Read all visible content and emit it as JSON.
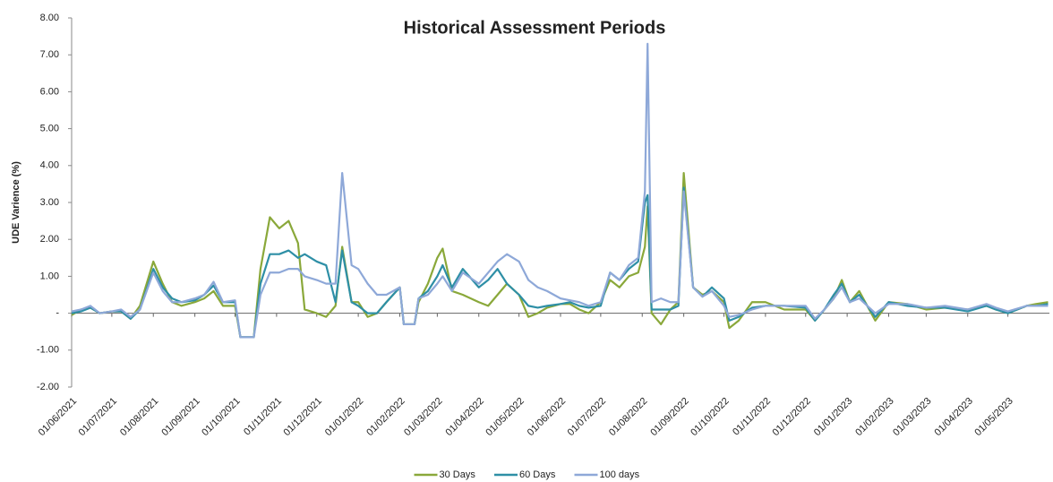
{
  "chart_data": {
    "type": "line",
    "title": "Historical Assessment Periods",
    "y_label": "UDE Varience (%)",
    "x": [
      "01/06/2021",
      "08/06/2021",
      "15/06/2021",
      "22/06/2021",
      "01/07/2021",
      "08/07/2021",
      "15/07/2021",
      "22/07/2021",
      "01/08/2021",
      "08/08/2021",
      "15/08/2021",
      "22/08/2021",
      "01/09/2021",
      "08/09/2021",
      "15/09/2021",
      "22/09/2021",
      "01/10/2021",
      "05/10/2021",
      "15/10/2021",
      "20/10/2021",
      "27/10/2021",
      "03/11/2021",
      "10/11/2021",
      "17/11/2021",
      "22/11/2021",
      "01/12/2021",
      "08/12/2021",
      "15/12/2021",
      "20/12/2021",
      "27/12/2021",
      "01/01/2022",
      "08/01/2022",
      "15/01/2022",
      "22/01/2022",
      "01/02/2022",
      "04/02/2022",
      "12/02/2022",
      "15/02/2022",
      "22/02/2022",
      "01/03/2022",
      "05/03/2022",
      "12/03/2022",
      "20/03/2022",
      "01/04/2022",
      "08/04/2022",
      "15/04/2022",
      "22/04/2022",
      "01/05/2022",
      "08/05/2022",
      "15/05/2022",
      "22/05/2022",
      "01/06/2022",
      "08/06/2022",
      "15/06/2022",
      "22/06/2022",
      "01/07/2022",
      "08/07/2022",
      "15/07/2022",
      "22/07/2022",
      "29/07/2022",
      "03/08/2022",
      "05/08/2022",
      "08/08/2022",
      "15/08/2022",
      "22/08/2022",
      "28/08/2022",
      "01/09/2022",
      "08/09/2022",
      "15/09/2022",
      "22/09/2022",
      "01/10/2022",
      "05/10/2022",
      "12/10/2022",
      "22/10/2022",
      "01/11/2022",
      "15/11/2022",
      "01/12/2022",
      "08/12/2022",
      "15/12/2022",
      "22/12/2022",
      "28/12/2022",
      "03/01/2023",
      "10/01/2023",
      "22/01/2023",
      "01/02/2023",
      "15/02/2023",
      "01/03/2023",
      "15/03/2023",
      "01/04/2023",
      "15/04/2023",
      "22/04/2023",
      "01/05/2023",
      "15/05/2023",
      "22/05/2023",
      "31/05/2023"
    ],
    "series": [
      {
        "name": "30 Days",
        "color": "#8aa83a",
        "values": [
          -0.05,
          0.1,
          0.15,
          0,
          0.05,
          0.05,
          -0.15,
          0.2,
          1.4,
          0.8,
          0.3,
          0.2,
          0.3,
          0.4,
          0.6,
          0.2,
          0.2,
          -0.65,
          -0.65,
          1.2,
          2.6,
          2.3,
          2.5,
          1.9,
          0.1,
          0,
          -0.1,
          0.2,
          1.8,
          0.3,
          0.3,
          -0.1,
          0,
          0.3,
          0.7,
          -0.3,
          -0.3,
          0.3,
          0.8,
          1.5,
          1.75,
          0.6,
          0.5,
          0.3,
          0.2,
          0.5,
          0.8,
          0.5,
          -0.1,
          0,
          0.15,
          0.25,
          0.25,
          0.1,
          0,
          0.3,
          0.9,
          0.7,
          1.0,
          1.1,
          1.8,
          2.9,
          0,
          -0.3,
          0.1,
          0.3,
          3.8,
          0.7,
          0.5,
          0.6,
          0.3,
          -0.4,
          -0.2,
          0.3,
          0.3,
          0.1,
          0.1,
          -0.2,
          0.1,
          0.4,
          0.9,
          0.3,
          0.6,
          -0.2,
          0.3,
          0.25,
          0.1,
          0.15,
          0.1,
          0.2,
          0.1,
          0,
          0.2,
          0.25,
          0.3
        ]
      },
      {
        "name": "60 Days",
        "color": "#2e8fa6",
        "values": [
          0,
          0.05,
          0.15,
          0,
          0.05,
          0.05,
          -0.15,
          0.1,
          1.2,
          0.7,
          0.4,
          0.3,
          0.35,
          0.5,
          0.75,
          0.3,
          0.3,
          -0.65,
          -0.65,
          0.8,
          1.6,
          1.6,
          1.7,
          1.5,
          1.6,
          1.4,
          1.3,
          0.3,
          1.7,
          0.3,
          0.2,
          0,
          0,
          0.3,
          0.7,
          -0.3,
          -0.3,
          0.4,
          0.6,
          1.0,
          1.3,
          0.7,
          1.2,
          0.7,
          0.9,
          1.2,
          0.8,
          0.5,
          0.2,
          0.15,
          0.2,
          0.25,
          0.3,
          0.2,
          0.15,
          0.2,
          1.1,
          0.9,
          1.2,
          1.4,
          3.0,
          3.2,
          0.1,
          0.1,
          0.1,
          0.2,
          3.4,
          0.7,
          0.45,
          0.7,
          0.4,
          -0.2,
          -0.1,
          0.15,
          0.2,
          0.2,
          0.15,
          -0.2,
          0.1,
          0.5,
          0.8,
          0.3,
          0.5,
          -0.1,
          0.3,
          0.2,
          0.15,
          0.15,
          0.05,
          0.2,
          0.1,
          0,
          0.2,
          0.2,
          0.25
        ]
      },
      {
        "name": "100 days",
        "color": "#8ea8d8",
        "values": [
          0.05,
          0.1,
          0.2,
          0,
          0.05,
          0.1,
          -0.1,
          0.1,
          1.1,
          0.6,
          0.3,
          0.3,
          0.4,
          0.5,
          0.85,
          0.3,
          0.35,
          -0.65,
          -0.65,
          0.5,
          1.1,
          1.1,
          1.2,
          1.2,
          1.0,
          0.9,
          0.8,
          0.8,
          3.8,
          1.3,
          1.2,
          0.8,
          0.5,
          0.5,
          0.7,
          -0.3,
          -0.3,
          0.4,
          0.5,
          0.8,
          1.0,
          0.6,
          1.1,
          0.8,
          1.1,
          1.4,
          1.6,
          1.4,
          0.9,
          0.7,
          0.6,
          0.4,
          0.35,
          0.3,
          0.2,
          0.3,
          1.1,
          0.9,
          1.3,
          1.5,
          3.3,
          7.3,
          0.3,
          0.4,
          0.3,
          0.3,
          3.3,
          0.7,
          0.45,
          0.6,
          0.2,
          -0.1,
          -0.05,
          0.1,
          0.2,
          0.2,
          0.2,
          -0.15,
          0.1,
          0.4,
          0.7,
          0.3,
          0.4,
          0,
          0.25,
          0.25,
          0.15,
          0.2,
          0.1,
          0.25,
          0.15,
          0.05,
          0.2,
          0.2,
          0.2
        ]
      }
    ],
    "xlim": [
      "01/06/2021",
      "01/06/2023"
    ],
    "xticks": [
      "01/06/2021",
      "01/07/2021",
      "01/08/2021",
      "01/09/2021",
      "01/10/2021",
      "01/11/2021",
      "01/12/2021",
      "01/01/2022",
      "01/02/2022",
      "01/03/2022",
      "01/04/2022",
      "01/05/2022",
      "01/06/2022",
      "01/07/2022",
      "01/08/2022",
      "01/09/2022",
      "01/10/2022",
      "01/11/2022",
      "01/12/2022",
      "01/01/2023",
      "01/02/2023",
      "01/03/2023",
      "01/04/2023",
      "01/05/2023"
    ],
    "ylim": [
      -2,
      8
    ],
    "yticks": [
      {
        "value": -2,
        "label": "-2.00"
      },
      {
        "value": -1,
        "label": "-1.00"
      },
      {
        "value": 0,
        "label": "-"
      },
      {
        "value": 1,
        "label": "1.00"
      },
      {
        "value": 2,
        "label": "2.00"
      },
      {
        "value": 3,
        "label": "3.00"
      },
      {
        "value": 4,
        "label": "4.00"
      },
      {
        "value": 5,
        "label": "5.00"
      },
      {
        "value": 6,
        "label": "6.00"
      },
      {
        "value": 7,
        "label": "7.00"
      },
      {
        "value": 8,
        "label": "8.00"
      }
    ],
    "grid": false,
    "legend": "bottom"
  }
}
